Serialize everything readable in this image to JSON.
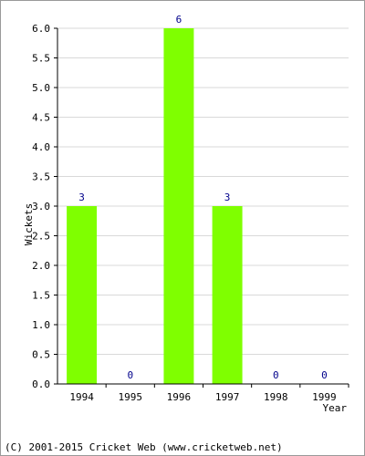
{
  "chart_data": {
    "type": "bar",
    "categories": [
      "1994",
      "1995",
      "1996",
      "1997",
      "1998",
      "1999"
    ],
    "values": [
      3,
      0,
      6,
      3,
      0,
      0
    ],
    "data_labels": [
      "3",
      "0",
      "6",
      "3",
      "0",
      "0"
    ],
    "xlabel": "Year",
    "ylabel": "Wickets",
    "ylim": [
      0,
      6
    ],
    "yticks": [
      "0.0",
      "0.5",
      "1.0",
      "1.5",
      "2.0",
      "2.5",
      "3.0",
      "3.5",
      "4.0",
      "4.5",
      "5.0",
      "5.5",
      "6.0"
    ],
    "grid": true,
    "bar_color": "#7fff00",
    "label_color": "#00008b",
    "grid_color": "#d9d9d9"
  },
  "footer": {
    "text": "(C) 2001-2015 Cricket Web (www.cricketweb.net)"
  }
}
